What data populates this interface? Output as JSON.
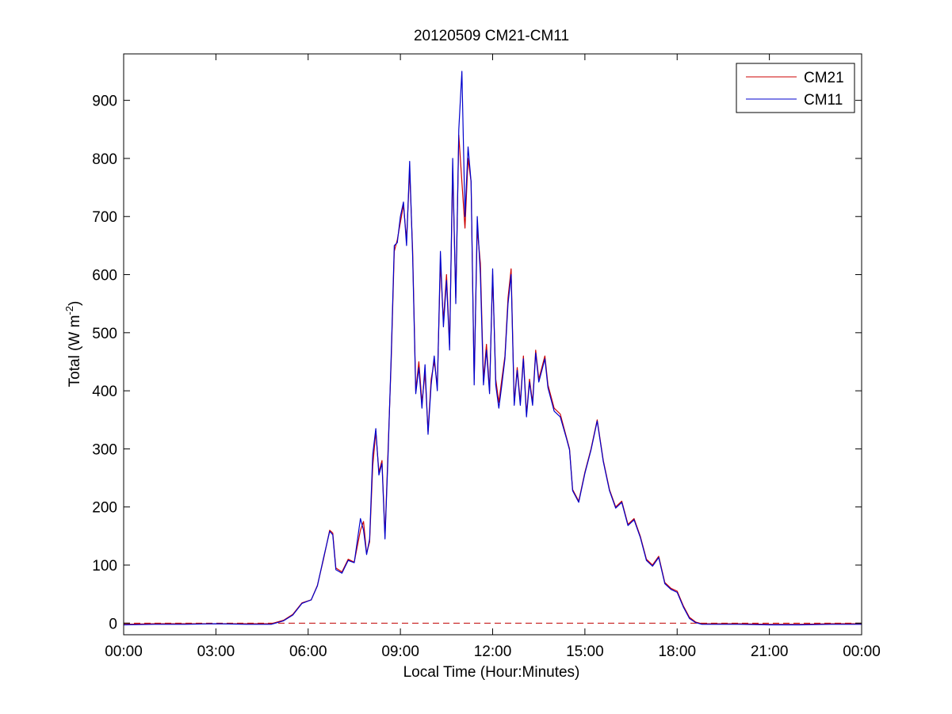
{
  "chart_data": {
    "type": "line",
    "title": "20120509 CM21-CM11",
    "xlabel": "Local Time (Hour:Minutes)",
    "ylabel": "Total (W m",
    "ylabel_sup": "-2",
    "ylabel_close": ")",
    "xlim": [
      0,
      24
    ],
    "ylim": [
      -20,
      980
    ],
    "x_ticks": [
      {
        "value": 0,
        "label": "00:00"
      },
      {
        "value": 3,
        "label": "03:00"
      },
      {
        "value": 6,
        "label": "06:00"
      },
      {
        "value": 9,
        "label": "09:00"
      },
      {
        "value": 12,
        "label": "12:00"
      },
      {
        "value": 15,
        "label": "15:00"
      },
      {
        "value": 18,
        "label": "18:00"
      },
      {
        "value": 21,
        "label": "21:00"
      },
      {
        "value": 24,
        "label": "00:00"
      }
    ],
    "y_ticks": [
      0,
      100,
      200,
      300,
      400,
      500,
      600,
      700,
      800,
      900
    ],
    "grid": false,
    "legend": {
      "placement": "top-right"
    },
    "reference_line": {
      "y": 0,
      "style": "dashed",
      "color": "#c00000"
    },
    "series": [
      {
        "name": "CM21",
        "color": "#cc0000",
        "x": [
          0,
          1,
          2,
          3,
          4,
          4.8,
          5.2,
          5.5,
          5.8,
          6.1,
          6.3,
          6.5,
          6.7,
          6.8,
          6.9,
          7.1,
          7.3,
          7.5,
          7.7,
          7.8,
          7.9,
          8.0,
          8.1,
          8.2,
          8.3,
          8.4,
          8.5,
          8.6,
          8.7,
          8.8,
          8.9,
          9.0,
          9.1,
          9.2,
          9.3,
          9.4,
          9.5,
          9.6,
          9.7,
          9.8,
          9.9,
          10.0,
          10.1,
          10.2,
          10.3,
          10.4,
          10.5,
          10.6,
          10.7,
          10.8,
          10.9,
          11.0,
          11.1,
          11.2,
          11.3,
          11.4,
          11.5,
          11.6,
          11.7,
          11.8,
          11.9,
          12.0,
          12.1,
          12.2,
          12.3,
          12.4,
          12.5,
          12.6,
          12.7,
          12.8,
          12.9,
          13.0,
          13.1,
          13.2,
          13.3,
          13.4,
          13.5,
          13.6,
          13.7,
          13.8,
          14.0,
          14.2,
          14.4,
          14.5,
          14.6,
          14.8,
          15.0,
          15.2,
          15.4,
          15.6,
          15.8,
          16.0,
          16.2,
          16.4,
          16.6,
          16.8,
          17.0,
          17.2,
          17.4,
          17.6,
          17.8,
          18.0,
          18.2,
          18.4,
          18.6,
          18.8,
          19.0,
          20,
          21,
          22,
          23,
          24
        ],
        "y": [
          -2,
          -1,
          -1,
          -1,
          -1,
          -1,
          5,
          15,
          35,
          40,
          65,
          110,
          160,
          155,
          95,
          88,
          110,
          105,
          160,
          175,
          120,
          140,
          270,
          330,
          260,
          280,
          150,
          300,
          450,
          640,
          660,
          690,
          720,
          660,
          780,
          640,
          400,
          450,
          380,
          430,
          330,
          420,
          450,
          410,
          620,
          520,
          600,
          480,
          780,
          560,
          840,
          760,
          680,
          800,
          760,
          420,
          680,
          620,
          420,
          480,
          400,
          600,
          420,
          380,
          420,
          460,
          560,
          610,
          380,
          440,
          380,
          460,
          360,
          420,
          380,
          470,
          420,
          440,
          460,
          410,
          370,
          360,
          320,
          300,
          230,
          210,
          260,
          300,
          350,
          280,
          230,
          200,
          210,
          170,
          180,
          150,
          110,
          100,
          115,
          70,
          60,
          55,
          30,
          10,
          2,
          -1,
          -1,
          -1,
          -2,
          -2,
          -1,
          -1
        ]
      },
      {
        "name": "CM11",
        "color": "#0000cc",
        "x": [
          0,
          1,
          2,
          3,
          4,
          4.8,
          5.2,
          5.5,
          5.8,
          6.1,
          6.3,
          6.5,
          6.7,
          6.8,
          6.9,
          7.1,
          7.3,
          7.5,
          7.7,
          7.8,
          7.9,
          8.0,
          8.1,
          8.2,
          8.3,
          8.4,
          8.5,
          8.6,
          8.7,
          8.8,
          8.9,
          9.0,
          9.1,
          9.2,
          9.3,
          9.4,
          9.5,
          9.6,
          9.7,
          9.8,
          9.9,
          10.0,
          10.1,
          10.2,
          10.3,
          10.4,
          10.5,
          10.6,
          10.7,
          10.8,
          10.9,
          11.0,
          11.1,
          11.2,
          11.3,
          11.4,
          11.5,
          11.6,
          11.7,
          11.8,
          11.9,
          12.0,
          12.1,
          12.2,
          12.3,
          12.4,
          12.5,
          12.6,
          12.7,
          12.8,
          12.9,
          13.0,
          13.1,
          13.2,
          13.3,
          13.4,
          13.5,
          13.6,
          13.7,
          13.8,
          14.0,
          14.2,
          14.4,
          14.5,
          14.6,
          14.8,
          15.0,
          15.2,
          15.4,
          15.6,
          15.8,
          16.0,
          16.2,
          16.4,
          16.6,
          16.8,
          17.0,
          17.2,
          17.4,
          17.6,
          17.8,
          18.0,
          18.2,
          18.4,
          18.6,
          18.8,
          19.0,
          20,
          21,
          22,
          23,
          24
        ],
        "y": [
          -3,
          -2,
          -2,
          -1,
          -2,
          -2,
          4,
          14,
          34,
          40,
          64,
          112,
          158,
          152,
          92,
          86,
          108,
          104,
          180,
          160,
          118,
          145,
          290,
          335,
          255,
          275,
          145,
          290,
          460,
          650,
          655,
          700,
          725,
          650,
          795,
          630,
          395,
          440,
          370,
          445,
          325,
          410,
          460,
          400,
          640,
          510,
          590,
          470,
          800,
          550,
          850,
          950,
          700,
          820,
          760,
          410,
          700,
          600,
          410,
          470,
          395,
          610,
          410,
          370,
          410,
          455,
          550,
          600,
          375,
          435,
          375,
          455,
          355,
          415,
          375,
          465,
          415,
          435,
          455,
          405,
          365,
          355,
          318,
          298,
          228,
          208,
          258,
          298,
          348,
          278,
          228,
          198,
          208,
          168,
          178,
          148,
          108,
          98,
          113,
          68,
          58,
          53,
          28,
          8,
          1,
          -2,
          -2,
          -2,
          -3,
          -3,
          -2,
          -2
        ]
      }
    ]
  }
}
